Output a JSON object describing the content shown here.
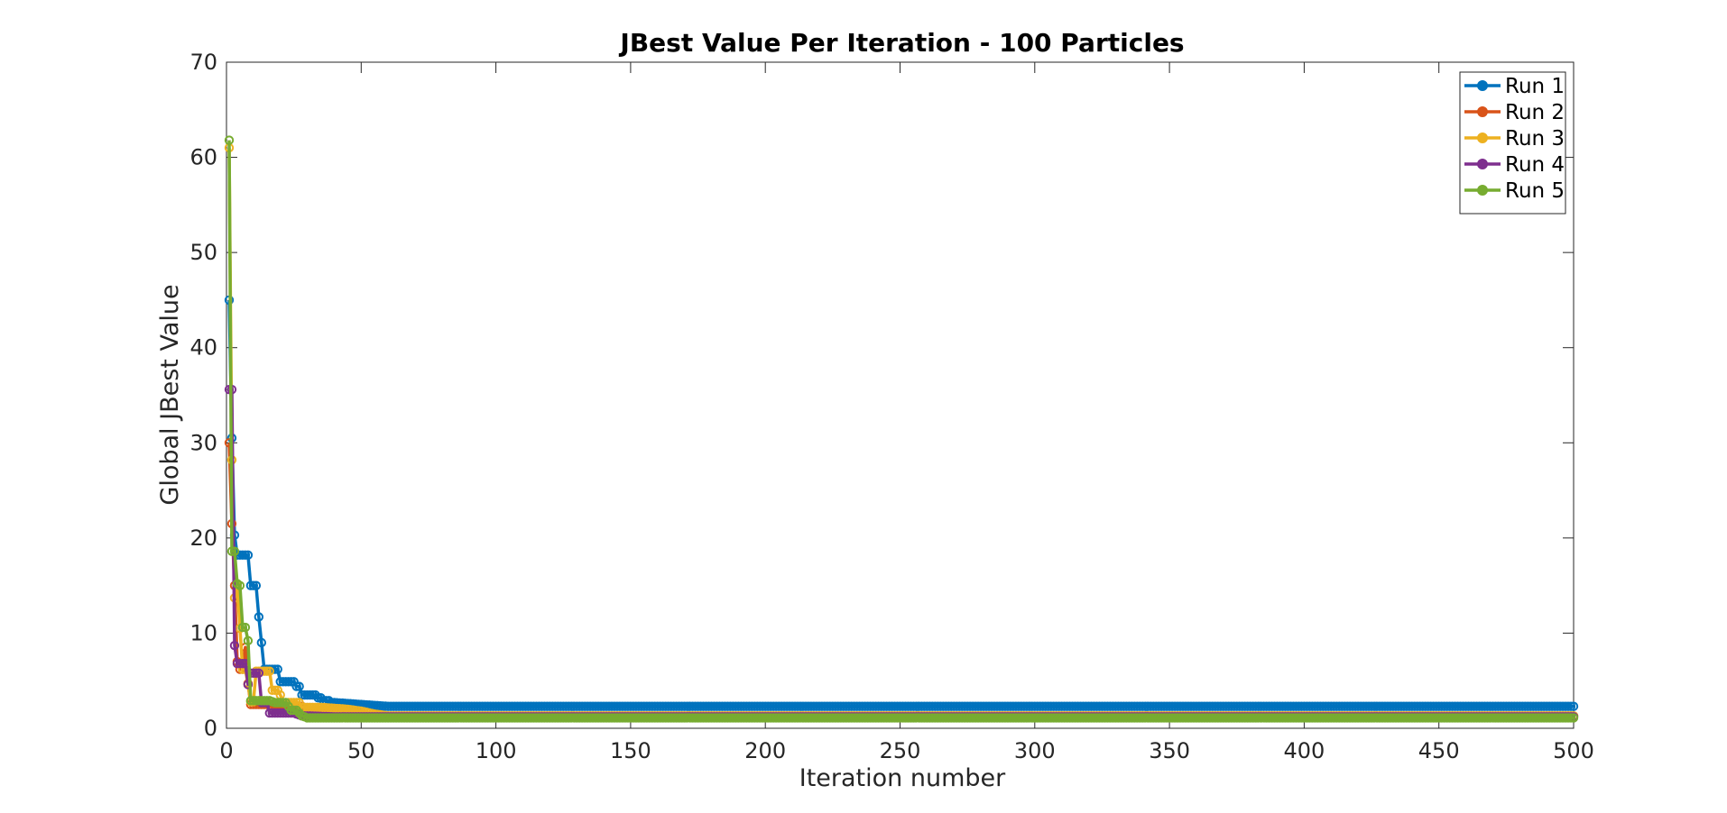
{
  "chart_data": {
    "type": "line",
    "title": "JBest Value Per Iteration - 100 Particles",
    "xlabel": "Iteration number",
    "ylabel": "Global JBest Value",
    "xlim": [
      0,
      500
    ],
    "ylim": [
      0,
      70
    ],
    "xticks": [
      0,
      50,
      100,
      150,
      200,
      250,
      300,
      350,
      400,
      450,
      500
    ],
    "yticks": [
      0,
      10,
      20,
      30,
      40,
      50,
      60,
      70
    ],
    "grid": false,
    "legend_position": "top-right",
    "series": [
      {
        "name": "Run 1",
        "color": "#0072BD",
        "points": [
          [
            1,
            45
          ],
          [
            2,
            30.5
          ],
          [
            3,
            20.3
          ],
          [
            4,
            18.2
          ],
          [
            5,
            18.2
          ],
          [
            6,
            18.2
          ],
          [
            7,
            18.2
          ],
          [
            8,
            18.2
          ],
          [
            9,
            15
          ],
          [
            10,
            15
          ],
          [
            11,
            15
          ],
          [
            12,
            11.7
          ],
          [
            13,
            9
          ],
          [
            14,
            6.2
          ],
          [
            15,
            6.2
          ],
          [
            16,
            6.2
          ],
          [
            17,
            6.2
          ],
          [
            18,
            6.2
          ],
          [
            19,
            6.2
          ],
          [
            20,
            4.9
          ],
          [
            21,
            4.9
          ],
          [
            22,
            4.9
          ],
          [
            23,
            4.9
          ],
          [
            24,
            4.9
          ],
          [
            25,
            4.9
          ],
          [
            26,
            4.4
          ],
          [
            27,
            4.4
          ],
          [
            28,
            3.5
          ],
          [
            29,
            3.5
          ],
          [
            30,
            3.5
          ],
          [
            31,
            3.5
          ],
          [
            32,
            3.5
          ],
          [
            33,
            3.5
          ],
          [
            34,
            3.2
          ],
          [
            35,
            3.2
          ],
          [
            36,
            2.9
          ],
          [
            37,
            2.9
          ],
          [
            38,
            2.9
          ],
          [
            39,
            2.7
          ],
          [
            40,
            2.7
          ],
          [
            45,
            2.6
          ],
          [
            50,
            2.5
          ],
          [
            55,
            2.4
          ],
          [
            60,
            2.3
          ],
          [
            500,
            2.3
          ]
        ]
      },
      {
        "name": "Run 2",
        "color": "#D95319",
        "points": [
          [
            1,
            30
          ],
          [
            2,
            21.5
          ],
          [
            3,
            15
          ],
          [
            4,
            7
          ],
          [
            5,
            6.2
          ],
          [
            6,
            6.2
          ],
          [
            7,
            8.5
          ],
          [
            8,
            4.7
          ],
          [
            9,
            2.5
          ],
          [
            10,
            2.5
          ],
          [
            12,
            2.5
          ],
          [
            15,
            2.5
          ],
          [
            18,
            2.2
          ],
          [
            20,
            2.1
          ],
          [
            25,
            2.2
          ],
          [
            28,
            2.3
          ],
          [
            30,
            1.6
          ],
          [
            35,
            1.5
          ],
          [
            40,
            1.4
          ],
          [
            45,
            1.3
          ],
          [
            50,
            1.3
          ],
          [
            500,
            1.3
          ]
        ]
      },
      {
        "name": "Run 3",
        "color": "#EDB120",
        "points": [
          [
            1,
            61
          ],
          [
            2,
            28.2
          ],
          [
            3,
            13.7
          ],
          [
            4,
            15
          ],
          [
            5,
            10.5
          ],
          [
            6,
            6.2
          ],
          [
            7,
            6.2
          ],
          [
            8,
            4.6
          ],
          [
            9,
            2.8
          ],
          [
            10,
            2.8
          ],
          [
            11,
            6
          ],
          [
            12,
            6
          ],
          [
            13,
            6
          ],
          [
            14,
            6
          ],
          [
            15,
            6
          ],
          [
            16,
            6
          ],
          [
            17,
            4
          ],
          [
            18,
            4
          ],
          [
            19,
            4
          ],
          [
            20,
            3.5
          ],
          [
            21,
            2.7
          ],
          [
            22,
            2.7
          ],
          [
            23,
            2.7
          ],
          [
            24,
            2.7
          ],
          [
            25,
            2.7
          ],
          [
            26,
            2.7
          ],
          [
            27,
            2.7
          ],
          [
            28,
            2.2
          ],
          [
            30,
            2.2
          ],
          [
            35,
            2.2
          ],
          [
            40,
            2.1
          ],
          [
            45,
            2.0
          ],
          [
            50,
            1.8
          ],
          [
            55,
            1.5
          ],
          [
            60,
            1.3
          ],
          [
            500,
            1.3
          ]
        ]
      },
      {
        "name": "Run 4",
        "color": "#7E2F8E",
        "points": [
          [
            1,
            35.6
          ],
          [
            2,
            35.6
          ],
          [
            3,
            8.7
          ],
          [
            4,
            6.8
          ],
          [
            5,
            6.8
          ],
          [
            6,
            6.8
          ],
          [
            7,
            6.8
          ],
          [
            8,
            4.6
          ],
          [
            9,
            5.8
          ],
          [
            10,
            5.8
          ],
          [
            11,
            5.8
          ],
          [
            12,
            5.8
          ],
          [
            13,
            2.7
          ],
          [
            14,
            2.7
          ],
          [
            15,
            2.7
          ],
          [
            16,
            1.6
          ],
          [
            17,
            1.6
          ],
          [
            18,
            1.6
          ],
          [
            19,
            1.6
          ],
          [
            20,
            1.6
          ],
          [
            22,
            1.6
          ],
          [
            25,
            1.6
          ],
          [
            28,
            1.3
          ],
          [
            30,
            1.3
          ],
          [
            40,
            1.2
          ],
          [
            50,
            1.2
          ],
          [
            500,
            1.2
          ]
        ]
      },
      {
        "name": "Run 5",
        "color": "#77AC30",
        "points": [
          [
            1,
            61.8
          ],
          [
            2,
            18.6
          ],
          [
            3,
            18.6
          ],
          [
            4,
            15.2
          ],
          [
            5,
            15
          ],
          [
            6,
            10.6
          ],
          [
            7,
            10.6
          ],
          [
            8,
            9.2
          ],
          [
            9,
            2.9
          ],
          [
            10,
            2.9
          ],
          [
            12,
            2.9
          ],
          [
            14,
            2.9
          ],
          [
            16,
            2.9
          ],
          [
            18,
            2.7
          ],
          [
            20,
            2.7
          ],
          [
            22,
            2.7
          ],
          [
            24,
            1.9
          ],
          [
            26,
            1.9
          ],
          [
            28,
            1.3
          ],
          [
            30,
            1.1
          ],
          [
            35,
            1.1
          ],
          [
            40,
            1.1
          ],
          [
            50,
            1.1
          ],
          [
            500,
            1.1
          ]
        ]
      }
    ]
  }
}
